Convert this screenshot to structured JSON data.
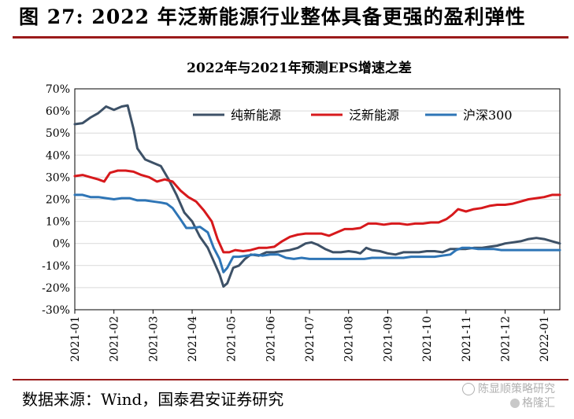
{
  "figure": {
    "title": "图 27: 2022 年泛新能源行业整体具备更强的盈利弹性",
    "source": "数据来源：Wind，国泰君安证券研究",
    "watermark_line1": "陈显顺策略研究",
    "watermark_line2": "格隆汇"
  },
  "chart_data": {
    "type": "line",
    "title": "2022年与2021年预测EPS增速之差",
    "xlabel": "",
    "ylabel": "",
    "ylim": [
      -30,
      70
    ],
    "yticks": [
      "-30%",
      "-20%",
      "-10%",
      "0%",
      "10%",
      "20%",
      "30%",
      "40%",
      "50%",
      "60%",
      "70%"
    ],
    "xlim": [
      0,
      12.4
    ],
    "categories": [
      "2021-01",
      "2021-02",
      "2021-03",
      "2021-04",
      "2021-05",
      "2021-06",
      "2021-07",
      "2021-08",
      "2021-09",
      "2021-10",
      "2021-11",
      "2021-12",
      "2022-01"
    ],
    "grid": true,
    "legend_position": "top-right",
    "series": [
      {
        "name": "纯新能源",
        "color": "#3d5167",
        "points": [
          [
            0,
            54
          ],
          [
            0.2,
            54.5
          ],
          [
            0.4,
            57
          ],
          [
            0.6,
            59
          ],
          [
            0.8,
            62
          ],
          [
            1.0,
            60.5
          ],
          [
            1.2,
            62
          ],
          [
            1.35,
            62.5
          ],
          [
            1.5,
            52
          ],
          [
            1.6,
            43
          ],
          [
            1.8,
            38
          ],
          [
            2.0,
            36.5
          ],
          [
            2.2,
            35
          ],
          [
            2.4,
            29
          ],
          [
            2.6,
            22
          ],
          [
            2.8,
            14
          ],
          [
            3.0,
            10
          ],
          [
            3.2,
            3
          ],
          [
            3.4,
            -2
          ],
          [
            3.55,
            -8
          ],
          [
            3.7,
            -14
          ],
          [
            3.8,
            -19.5
          ],
          [
            3.9,
            -18
          ],
          [
            4.05,
            -11
          ],
          [
            4.2,
            -10
          ],
          [
            4.35,
            -7
          ],
          [
            4.5,
            -5
          ],
          [
            4.7,
            -5.5
          ],
          [
            4.9,
            -4
          ],
          [
            5.1,
            -4
          ],
          [
            5.3,
            -3.5
          ],
          [
            5.5,
            -3
          ],
          [
            5.7,
            -2
          ],
          [
            5.9,
            0
          ],
          [
            6.05,
            0.5
          ],
          [
            6.2,
            -0.5
          ],
          [
            6.4,
            -2.5
          ],
          [
            6.6,
            -4
          ],
          [
            6.8,
            -4
          ],
          [
            7.0,
            -3.5
          ],
          [
            7.2,
            -4
          ],
          [
            7.3,
            -4.5
          ],
          [
            7.45,
            -2
          ],
          [
            7.6,
            -3
          ],
          [
            7.8,
            -3.5
          ],
          [
            8.0,
            -4.5
          ],
          [
            8.2,
            -5
          ],
          [
            8.4,
            -4
          ],
          [
            8.6,
            -4
          ],
          [
            8.8,
            -4
          ],
          [
            9.0,
            -3.5
          ],
          [
            9.2,
            -3.5
          ],
          [
            9.4,
            -4
          ],
          [
            9.6,
            -2.5
          ],
          [
            9.8,
            -2.5
          ],
          [
            10.0,
            -2.5
          ],
          [
            10.2,
            -2
          ],
          [
            10.4,
            -2
          ],
          [
            10.6,
            -1.5
          ],
          [
            10.8,
            -1
          ],
          [
            11.0,
            0
          ],
          [
            11.2,
            0.5
          ],
          [
            11.4,
            1
          ],
          [
            11.6,
            2
          ],
          [
            11.8,
            2.5
          ],
          [
            12.0,
            2
          ],
          [
            12.2,
            1
          ],
          [
            12.4,
            0
          ]
        ]
      },
      {
        "name": "泛新能源",
        "color": "#d7191c",
        "points": [
          [
            0,
            30.5
          ],
          [
            0.2,
            31
          ],
          [
            0.4,
            30
          ],
          [
            0.6,
            29
          ],
          [
            0.75,
            28
          ],
          [
            0.9,
            32
          ],
          [
            1.1,
            33
          ],
          [
            1.3,
            33
          ],
          [
            1.5,
            32.5
          ],
          [
            1.7,
            31
          ],
          [
            1.9,
            30
          ],
          [
            2.1,
            28
          ],
          [
            2.3,
            29
          ],
          [
            2.5,
            28
          ],
          [
            2.7,
            24
          ],
          [
            2.9,
            21
          ],
          [
            3.1,
            19
          ],
          [
            3.3,
            15
          ],
          [
            3.5,
            10
          ],
          [
            3.65,
            2
          ],
          [
            3.8,
            -4
          ],
          [
            3.95,
            -4
          ],
          [
            4.1,
            -3
          ],
          [
            4.3,
            -3.5
          ],
          [
            4.5,
            -3
          ],
          [
            4.7,
            -2
          ],
          [
            4.9,
            -2
          ],
          [
            5.1,
            -1.5
          ],
          [
            5.3,
            1
          ],
          [
            5.5,
            3
          ],
          [
            5.7,
            4
          ],
          [
            5.9,
            4.5
          ],
          [
            6.1,
            4.5
          ],
          [
            6.3,
            4.5
          ],
          [
            6.5,
            3.5
          ],
          [
            6.7,
            5
          ],
          [
            6.9,
            6.5
          ],
          [
            7.1,
            6.5
          ],
          [
            7.3,
            7
          ],
          [
            7.5,
            9
          ],
          [
            7.7,
            9
          ],
          [
            7.9,
            8.5
          ],
          [
            8.1,
            9
          ],
          [
            8.3,
            9
          ],
          [
            8.5,
            8.5
          ],
          [
            8.7,
            9
          ],
          [
            8.9,
            9
          ],
          [
            9.1,
            9.5
          ],
          [
            9.3,
            9.5
          ],
          [
            9.5,
            11
          ],
          [
            9.65,
            13
          ],
          [
            9.8,
            15.5
          ],
          [
            10.0,
            14.5
          ],
          [
            10.2,
            15.5
          ],
          [
            10.4,
            16
          ],
          [
            10.6,
            17
          ],
          [
            10.8,
            17.5
          ],
          [
            11.0,
            17.5
          ],
          [
            11.2,
            18
          ],
          [
            11.4,
            19
          ],
          [
            11.6,
            20
          ],
          [
            11.8,
            20.5
          ],
          [
            12.0,
            21
          ],
          [
            12.2,
            22
          ],
          [
            12.4,
            22
          ]
        ]
      },
      {
        "name": "沪深300",
        "color": "#2e75b6",
        "points": [
          [
            0,
            22
          ],
          [
            0.2,
            22
          ],
          [
            0.4,
            21
          ],
          [
            0.6,
            21
          ],
          [
            0.8,
            20.5
          ],
          [
            1.0,
            20
          ],
          [
            1.2,
            20.5
          ],
          [
            1.4,
            20.5
          ],
          [
            1.6,
            19.5
          ],
          [
            1.8,
            19.5
          ],
          [
            2.0,
            19
          ],
          [
            2.2,
            18.5
          ],
          [
            2.35,
            18
          ],
          [
            2.5,
            16
          ],
          [
            2.7,
            11
          ],
          [
            2.85,
            7
          ],
          [
            3.0,
            7
          ],
          [
            3.2,
            7.5
          ],
          [
            3.4,
            5
          ],
          [
            3.55,
            -2
          ],
          [
            3.7,
            -7
          ],
          [
            3.8,
            -13
          ],
          [
            3.9,
            -11
          ],
          [
            4.05,
            -6
          ],
          [
            4.2,
            -6
          ],
          [
            4.4,
            -5.5
          ],
          [
            4.6,
            -5
          ],
          [
            4.8,
            -5.5
          ],
          [
            5.0,
            -5
          ],
          [
            5.2,
            -5
          ],
          [
            5.4,
            -6.5
          ],
          [
            5.6,
            -7
          ],
          [
            5.8,
            -6.5
          ],
          [
            6.0,
            -7
          ],
          [
            6.2,
            -7
          ],
          [
            6.4,
            -7
          ],
          [
            6.6,
            -7
          ],
          [
            6.8,
            -7
          ],
          [
            7.0,
            -7
          ],
          [
            7.2,
            -7
          ],
          [
            7.4,
            -7
          ],
          [
            7.6,
            -6.5
          ],
          [
            7.8,
            -6.5
          ],
          [
            8.0,
            -6.5
          ],
          [
            8.2,
            -6.5
          ],
          [
            8.4,
            -6.5
          ],
          [
            8.6,
            -6
          ],
          [
            8.8,
            -6
          ],
          [
            9.0,
            -6
          ],
          [
            9.2,
            -6
          ],
          [
            9.4,
            -5.5
          ],
          [
            9.6,
            -5
          ],
          [
            9.75,
            -3
          ],
          [
            9.9,
            -2
          ],
          [
            10.1,
            -2
          ],
          [
            10.3,
            -2.5
          ],
          [
            10.5,
            -2.5
          ],
          [
            10.7,
            -2.5
          ],
          [
            10.9,
            -3
          ],
          [
            11.1,
            -3
          ],
          [
            11.3,
            -3
          ],
          [
            11.5,
            -3
          ],
          [
            11.7,
            -3
          ],
          [
            11.9,
            -3
          ],
          [
            12.1,
            -3
          ],
          [
            12.4,
            -3
          ]
        ]
      }
    ]
  }
}
